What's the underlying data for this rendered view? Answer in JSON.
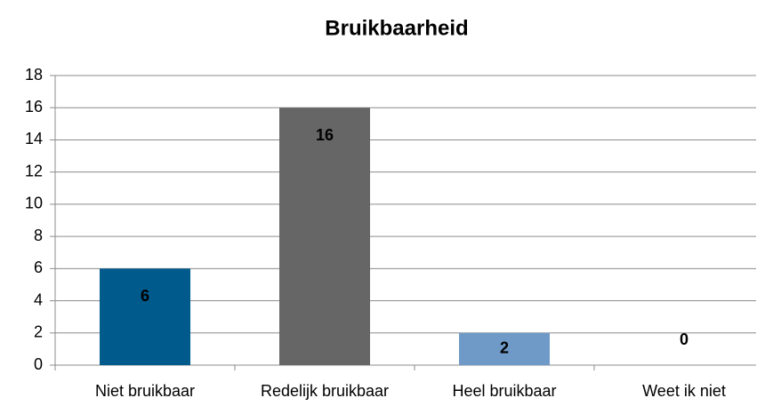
{
  "chart_data": {
    "type": "bar",
    "title": "Bruikbaarheid",
    "categories": [
      "Niet bruikbaar",
      "Redelijk bruikbaar",
      "Heel bruikbaar",
      "Weet ik niet"
    ],
    "values": [
      6,
      16,
      2,
      0
    ],
    "colors": [
      "#005a8c",
      "#666666",
      "#6f9ac8"
    ],
    "ylim": [
      0,
      18
    ],
    "yticks": [
      0,
      2,
      4,
      6,
      8,
      10,
      12,
      14,
      16,
      18
    ],
    "grid": true
  }
}
